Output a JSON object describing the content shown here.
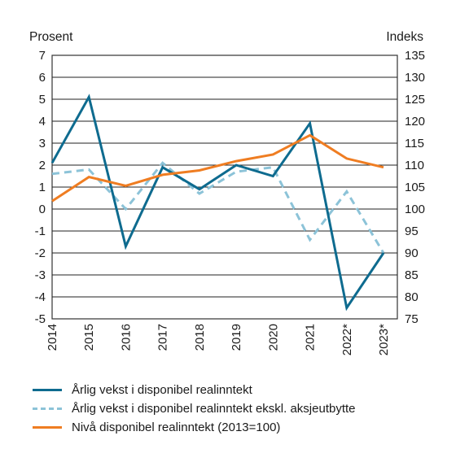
{
  "chart_data": {
    "type": "line",
    "categories": [
      "2014",
      "2015",
      "2016",
      "2017",
      "2018",
      "2019",
      "2020",
      "2021",
      "2022*",
      "2023*"
    ],
    "left_axis": {
      "label": "Prosent",
      "ylim": [
        -5,
        7
      ],
      "ticks": [
        7,
        6,
        5,
        4,
        3,
        2,
        1,
        0,
        -1,
        -2,
        -3,
        -4,
        -5
      ]
    },
    "right_axis": {
      "label": "Indeks",
      "ylim": [
        75,
        135
      ],
      "ticks": [
        135,
        130,
        125,
        120,
        115,
        110,
        105,
        100,
        95,
        90,
        85,
        80,
        75
      ]
    },
    "grid": true,
    "legend_position": "bottom",
    "series": [
      {
        "name": "Årlig vekst i disponibel realinntekt",
        "axis": "left",
        "style": "solid",
        "color": "#0e6b8f",
        "values": [
          2.1,
          5.1,
          -1.7,
          1.9,
          0.9,
          2.0,
          1.5,
          3.9,
          -4.5,
          -2.0
        ]
      },
      {
        "name": "Årlig vekst i disponibel realinntekt ekskl. aksjeutbytte",
        "axis": "left",
        "style": "dashed",
        "color": "#8cc3d8",
        "values": [
          1.6,
          1.8,
          0.0,
          2.1,
          0.7,
          1.7,
          1.9,
          -1.4,
          0.8,
          -2.0
        ]
      },
      {
        "name": "Nivå disponibel realinntekt (2013=100)",
        "axis": "right",
        "style": "solid",
        "color": "#ef7d22",
        "values": [
          101.8,
          107.3,
          105.3,
          107.8,
          108.8,
          110.9,
          112.4,
          116.8,
          111.5,
          109.5
        ]
      }
    ]
  }
}
